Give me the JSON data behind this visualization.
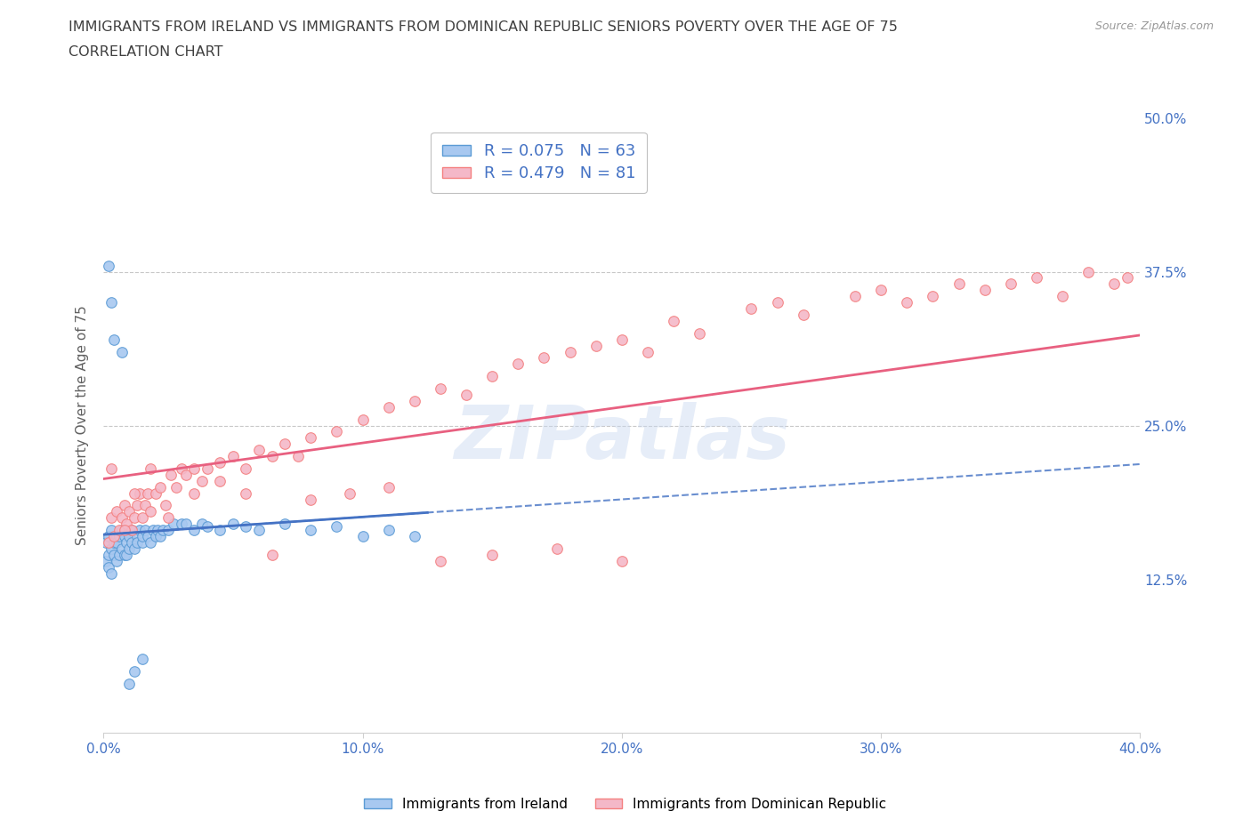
{
  "title_line1": "IMMIGRANTS FROM IRELAND VS IMMIGRANTS FROM DOMINICAN REPUBLIC SENIORS POVERTY OVER THE AGE OF 75",
  "title_line2": "CORRELATION CHART",
  "source": "Source: ZipAtlas.com",
  "ylabel": "Seniors Poverty Over the Age of 75",
  "xmin": 0.0,
  "xmax": 0.4,
  "ymin": 0.0,
  "ymax": 0.5,
  "yticks": [
    0.0,
    0.125,
    0.25,
    0.375,
    0.5
  ],
  "ytick_labels": [
    "",
    "12.5%",
    "25.0%",
    "37.5%",
    "50.0%"
  ],
  "xticks": [
    0.0,
    0.1,
    0.2,
    0.3,
    0.4
  ],
  "xtick_labels": [
    "0.0%",
    "10.0%",
    "20.0%",
    "30.0%",
    "40.0%"
  ],
  "ireland_color": "#a8c8f0",
  "ireland_edge": "#5b9bd5",
  "dr_color": "#f4b8c8",
  "dr_edge": "#f48080",
  "ireland_R": 0.075,
  "ireland_N": 63,
  "dr_R": 0.479,
  "dr_N": 81,
  "ireland_scatter_x": [
    0.001,
    0.001,
    0.002,
    0.002,
    0.002,
    0.003,
    0.003,
    0.003,
    0.004,
    0.004,
    0.005,
    0.005,
    0.005,
    0.006,
    0.006,
    0.007,
    0.007,
    0.008,
    0.008,
    0.009,
    0.009,
    0.01,
    0.01,
    0.011,
    0.011,
    0.012,
    0.013,
    0.013,
    0.014,
    0.015,
    0.015,
    0.016,
    0.017,
    0.018,
    0.019,
    0.02,
    0.021,
    0.022,
    0.023,
    0.025,
    0.027,
    0.03,
    0.032,
    0.035,
    0.038,
    0.04,
    0.045,
    0.05,
    0.055,
    0.06,
    0.07,
    0.08,
    0.09,
    0.1,
    0.11,
    0.12,
    0.002,
    0.003,
    0.004,
    0.007,
    0.01,
    0.012,
    0.015
  ],
  "ireland_scatter_y": [
    0.14,
    0.155,
    0.145,
    0.16,
    0.135,
    0.15,
    0.165,
    0.13,
    0.155,
    0.145,
    0.16,
    0.14,
    0.155,
    0.145,
    0.16,
    0.15,
    0.165,
    0.145,
    0.16,
    0.155,
    0.145,
    0.16,
    0.15,
    0.155,
    0.165,
    0.15,
    0.16,
    0.155,
    0.165,
    0.155,
    0.16,
    0.165,
    0.16,
    0.155,
    0.165,
    0.16,
    0.165,
    0.16,
    0.165,
    0.165,
    0.17,
    0.17,
    0.17,
    0.165,
    0.17,
    0.168,
    0.165,
    0.17,
    0.168,
    0.165,
    0.17,
    0.165,
    0.168,
    0.16,
    0.165,
    0.16,
    0.38,
    0.35,
    0.32,
    0.31,
    0.04,
    0.05,
    0.06
  ],
  "dr_scatter_x": [
    0.002,
    0.003,
    0.004,
    0.005,
    0.006,
    0.007,
    0.008,
    0.009,
    0.01,
    0.011,
    0.012,
    0.013,
    0.014,
    0.015,
    0.016,
    0.017,
    0.018,
    0.02,
    0.022,
    0.024,
    0.026,
    0.028,
    0.03,
    0.032,
    0.035,
    0.038,
    0.04,
    0.045,
    0.05,
    0.055,
    0.06,
    0.065,
    0.07,
    0.075,
    0.08,
    0.09,
    0.1,
    0.11,
    0.12,
    0.13,
    0.14,
    0.15,
    0.16,
    0.17,
    0.18,
    0.19,
    0.2,
    0.21,
    0.22,
    0.23,
    0.25,
    0.26,
    0.27,
    0.29,
    0.3,
    0.31,
    0.32,
    0.33,
    0.34,
    0.35,
    0.36,
    0.37,
    0.38,
    0.39,
    0.395,
    0.003,
    0.008,
    0.012,
    0.018,
    0.025,
    0.035,
    0.045,
    0.055,
    0.065,
    0.08,
    0.095,
    0.11,
    0.13,
    0.15,
    0.175,
    0.2
  ],
  "dr_scatter_y": [
    0.155,
    0.175,
    0.16,
    0.18,
    0.165,
    0.175,
    0.185,
    0.17,
    0.18,
    0.165,
    0.175,
    0.185,
    0.195,
    0.175,
    0.185,
    0.195,
    0.18,
    0.195,
    0.2,
    0.185,
    0.21,
    0.2,
    0.215,
    0.21,
    0.215,
    0.205,
    0.215,
    0.22,
    0.225,
    0.215,
    0.23,
    0.225,
    0.235,
    0.225,
    0.24,
    0.245,
    0.255,
    0.265,
    0.27,
    0.28,
    0.275,
    0.29,
    0.3,
    0.305,
    0.31,
    0.315,
    0.32,
    0.31,
    0.335,
    0.325,
    0.345,
    0.35,
    0.34,
    0.355,
    0.36,
    0.35,
    0.355,
    0.365,
    0.36,
    0.365,
    0.37,
    0.355,
    0.375,
    0.365,
    0.37,
    0.215,
    0.165,
    0.195,
    0.215,
    0.175,
    0.195,
    0.205,
    0.195,
    0.145,
    0.19,
    0.195,
    0.2,
    0.14,
    0.145,
    0.15,
    0.14
  ],
  "ireland_line_color": "#4472c4",
  "ireland_line_solid_xmax": 0.125,
  "dr_line_color": "#e86080",
  "legend_ireland_label": "Immigrants from Ireland",
  "legend_dr_label": "Immigrants from Dominican Republic",
  "watermark_text": "ZIPatlas",
  "hline_y1": 0.375,
  "hline_y2": 0.25,
  "title_color": "#404040",
  "axis_label_color": "#606060",
  "tick_color": "#4472c4",
  "legend_text_color": "#4472c4"
}
